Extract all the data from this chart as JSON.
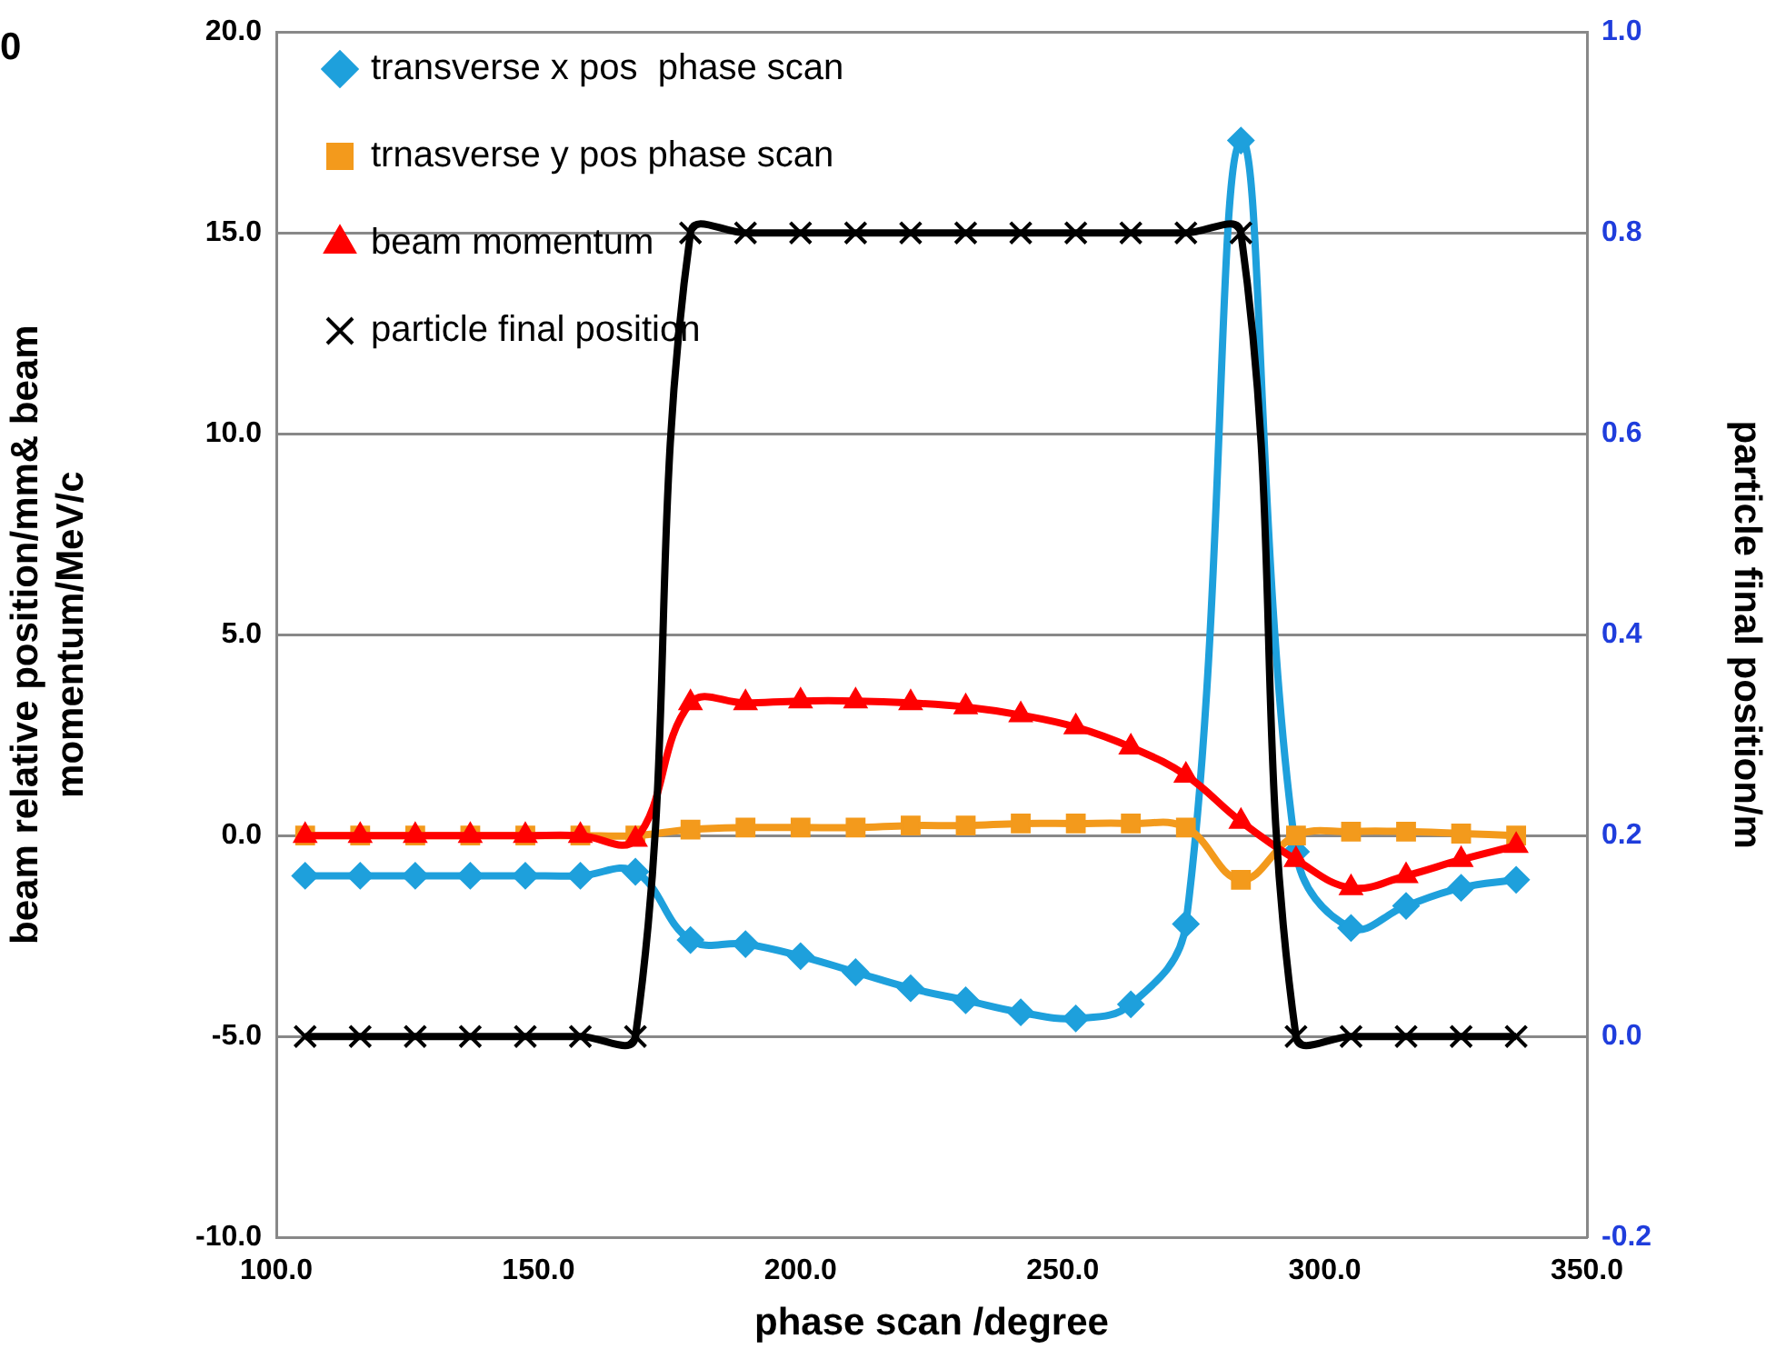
{
  "chart_data": {
    "type": "line",
    "xlabel": "phase scan /degree",
    "ylabel": "beam relative position/mm& beam momentum/MeV/c",
    "y2label": "particle final position/m",
    "x": [
      105.5,
      116,
      126.5,
      137,
      147.5,
      158,
      168.5,
      179,
      189.5,
      200,
      210.5,
      221,
      231.5,
      242,
      252.5,
      263,
      273.5,
      284,
      294.5,
      305,
      315.5,
      326,
      336.5
    ],
    "series": [
      {
        "name": "transverse x pos  phase scan",
        "color": "#1ea0dc",
        "marker": "diamond",
        "values": [
          -1.0,
          -1.0,
          -1.0,
          -1.0,
          -1.0,
          -1.0,
          -0.9,
          -2.6,
          -2.7,
          -3.0,
          -3.4,
          -3.8,
          -4.1,
          -4.4,
          -4.55,
          -4.2,
          -2.2,
          17.3,
          -0.4,
          -2.3,
          -1.75,
          -1.3,
          -1.1
        ]
      },
      {
        "name": "trnasverse y pos phase scan",
        "color": "#f39a1c",
        "marker": "square",
        "values": [
          0.0,
          0.0,
          0.0,
          0.0,
          0.0,
          0.0,
          0.0,
          0.15,
          0.2,
          0.2,
          0.2,
          0.25,
          0.25,
          0.3,
          0.3,
          0.3,
          0.2,
          -1.1,
          0.0,
          0.1,
          0.1,
          0.05,
          0.0
        ]
      },
      {
        "name": "beam momentum",
        "color": "#ff0000",
        "marker": "triangle",
        "values": [
          0.0,
          0.0,
          0.0,
          0.0,
          0.0,
          0.0,
          -0.1,
          3.3,
          3.3,
          3.35,
          3.35,
          3.3,
          3.2,
          3.0,
          2.7,
          2.2,
          1.5,
          0.35,
          -0.6,
          -1.3,
          -1.0,
          -0.6,
          -0.25
        ]
      },
      {
        "name": "particle final position",
        "color": "#000000",
        "marker": "cross",
        "axis": "y2",
        "values": [
          0,
          0,
          0,
          0,
          0,
          0,
          0,
          0.8,
          0.8,
          0.8,
          0.8,
          0.8,
          0.8,
          0.8,
          0.8,
          0.8,
          0.8,
          0.8,
          0,
          0,
          0,
          0,
          0
        ]
      }
    ],
    "xlim": [
      100,
      350
    ],
    "xticks": [
      {
        "value": 100,
        "label": "100.0"
      },
      {
        "value": 150,
        "label": "150.0"
      },
      {
        "value": 200,
        "label": "200.0"
      },
      {
        "value": 250,
        "label": "250.0"
      },
      {
        "value": 300,
        "label": "300.0"
      },
      {
        "value": 350,
        "label": "350.0"
      }
    ],
    "ylim": [
      -10,
      20
    ],
    "yticks": [
      {
        "value": -10,
        "label": "-10.0"
      },
      {
        "value": -5,
        "label": "-5.0"
      },
      {
        "value": 0,
        "label": "0.0"
      },
      {
        "value": 5,
        "label": "5.0"
      },
      {
        "value": 10,
        "label": "10.0"
      },
      {
        "value": 15,
        "label": "15.0"
      },
      {
        "value": 20,
        "label": "20.0"
      }
    ],
    "y2lim": [
      -0.2,
      1.0
    ],
    "y2ticks": [
      {
        "value": -0.2,
        "label": "-0.2"
      },
      {
        "value": 0,
        "label": "0.0"
      },
      {
        "value": 0.2,
        "label": "0.2"
      },
      {
        "value": 0.4,
        "label": "0.4"
      },
      {
        "value": 0.6,
        "label": "0.6"
      },
      {
        "value": 0.8,
        "label": "0.8"
      },
      {
        "value": 1.0,
        "label": "1.0"
      }
    ],
    "grid": "y",
    "legend": "top left",
    "line_style": "solid",
    "annotations": [
      "0"
    ]
  }
}
